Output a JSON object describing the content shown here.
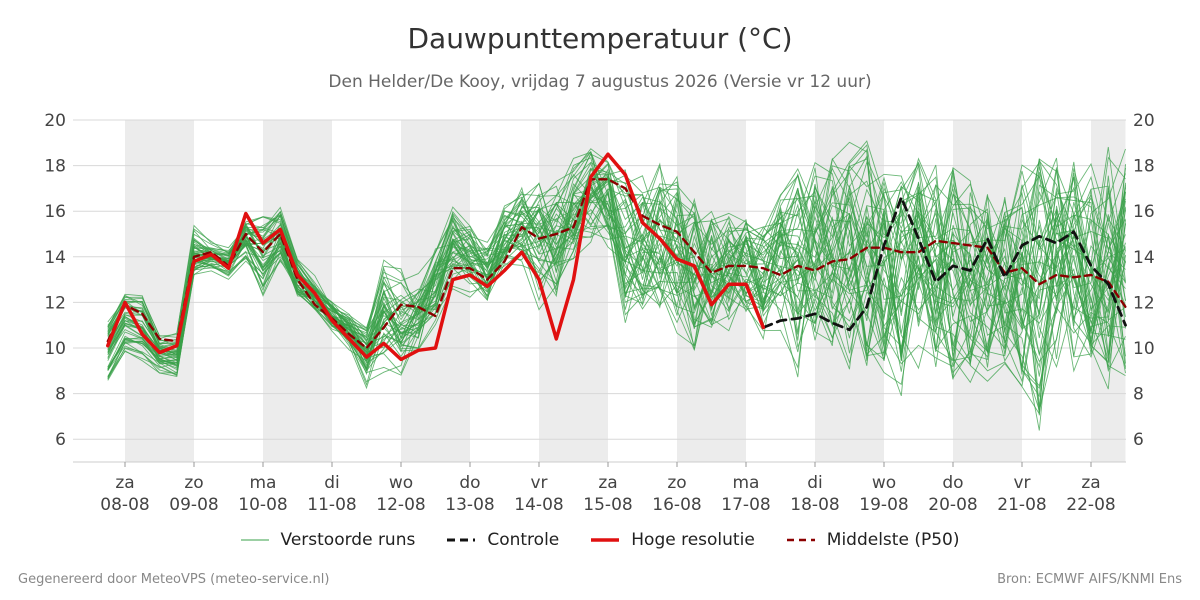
{
  "chart": {
    "title": "Dauwpunttemperatuur (°C)",
    "subtitle": "Den Helder/De Kooy, vrijdag  7 augustus 2026 (Versie vr 12 uur)",
    "footer_left": "Gegenereerd door MeteoVPS (meteo-service.nl)",
    "footer_right": "Bron: ECMWF AIFS/KNMI Ens",
    "legend": [
      {
        "label": "Verstoorde runs",
        "color": "#3aa04a",
        "style": "thin"
      },
      {
        "label": "Controle",
        "color": "#111111",
        "style": "dashed"
      },
      {
        "label": "Hoge resolutie",
        "color": "#e01010",
        "style": "solid-thick"
      },
      {
        "label": "Middelste (P50)",
        "color": "#8b0000",
        "style": "dashed"
      }
    ]
  },
  "chart_data": {
    "type": "line",
    "title": "Dauwpunttemperatuur (°C)",
    "x_unit": "days since start",
    "xlim": [
      -0.25,
      14.5
    ],
    "ylim": [
      5,
      20
    ],
    "y_ticks": [
      6,
      8,
      10,
      12,
      14,
      16,
      18,
      20
    ],
    "x_ticks": [
      {
        "x": 0,
        "day": "za",
        "date": "08-08"
      },
      {
        "x": 1,
        "day": "zo",
        "date": "09-08"
      },
      {
        "x": 2,
        "day": "ma",
        "date": "10-08"
      },
      {
        "x": 3,
        "day": "di",
        "date": "11-08"
      },
      {
        "x": 4,
        "day": "wo",
        "date": "12-08"
      },
      {
        "x": 5,
        "day": "do",
        "date": "13-08"
      },
      {
        "x": 6,
        "day": "vr",
        "date": "14-08"
      },
      {
        "x": 7,
        "day": "za",
        "date": "15-08"
      },
      {
        "x": 8,
        "day": "zo",
        "date": "16-08"
      },
      {
        "x": 9,
        "day": "ma",
        "date": "17-08"
      },
      {
        "x": 10,
        "day": "di",
        "date": "18-08"
      },
      {
        "x": 11,
        "day": "wo",
        "date": "19-08"
      },
      {
        "x": 12,
        "day": "do",
        "date": "20-08"
      },
      {
        "x": 13,
        "day": "vr",
        "date": "21-08"
      },
      {
        "x": 14,
        "day": "za",
        "date": "22-08"
      }
    ],
    "shaded_days": [
      [
        0,
        1
      ],
      [
        2,
        3
      ],
      [
        4,
        5
      ],
      [
        6,
        7
      ],
      [
        8,
        9
      ],
      [
        10,
        11
      ],
      [
        12,
        13
      ],
      [
        14,
        14.5
      ]
    ],
    "grid": true,
    "legend_position": "bottom",
    "series": [
      {
        "name": "Hoge resolutie",
        "color": "#e01010",
        "x": [
          -0.25,
          0,
          0.25,
          0.5,
          0.75,
          1,
          1.25,
          1.5,
          1.75,
          2,
          2.25,
          2.5,
          2.75,
          3,
          3.25,
          3.5,
          3.75,
          4,
          4.25,
          4.5,
          4.75,
          5,
          5.25,
          5.5,
          5.75,
          6,
          6.25,
          6.5,
          6.75,
          7,
          7.25,
          7.5,
          7.75,
          8,
          8.25,
          8.5,
          8.75,
          9,
          9.25
        ],
        "y": [
          10.1,
          12.0,
          10.6,
          9.8,
          10.1,
          13.8,
          14.1,
          13.5,
          15.9,
          14.6,
          15.2,
          13.2,
          12.4,
          11.2,
          10.4,
          9.6,
          10.2,
          9.5,
          9.9,
          10.0,
          13.0,
          13.2,
          12.7,
          13.4,
          14.2,
          13.0,
          10.4,
          13.0,
          17.5,
          18.5,
          17.6,
          15.5,
          14.8,
          13.9,
          13.6,
          11.9,
          12.8,
          12.8,
          10.9
        ]
      },
      {
        "name": "Controle",
        "color": "#111111",
        "x": [
          9.25,
          9.5,
          9.75,
          10,
          10.25,
          10.5,
          10.75,
          11,
          11.25,
          11.5,
          11.75,
          12,
          12.25,
          12.5,
          12.75,
          13,
          13.25,
          13.5,
          13.75,
          14,
          14.25,
          14.5
        ],
        "y": [
          10.9,
          11.2,
          11.3,
          11.5,
          11.1,
          10.8,
          11.8,
          14.5,
          16.6,
          14.8,
          12.9,
          13.6,
          13.4,
          14.8,
          13.1,
          14.5,
          14.9,
          14.6,
          15.1,
          13.6,
          12.8,
          11.0
        ]
      },
      {
        "name": "Middelste (P50)",
        "color": "#8b0000",
        "x": [
          -0.25,
          0,
          0.25,
          0.5,
          0.75,
          1,
          1.25,
          1.5,
          1.75,
          2,
          2.25,
          2.5,
          2.75,
          3,
          3.25,
          3.5,
          3.75,
          4,
          4.25,
          4.5,
          4.75,
          5,
          5.25,
          5.5,
          5.75,
          6,
          6.25,
          6.5,
          6.75,
          7,
          7.25,
          7.5,
          7.75,
          8,
          8.25,
          8.5,
          8.75,
          9,
          9.25,
          9.5,
          9.75,
          10,
          10.25,
          10.5,
          10.75,
          11,
          11.25,
          11.5,
          11.75,
          12,
          12.25,
          12.5,
          12.75,
          13,
          13.25,
          13.5,
          13.75,
          14,
          14.25,
          14.5
        ],
        "y": [
          10.3,
          11.9,
          11.5,
          10.4,
          10.3,
          14.0,
          14.2,
          13.6,
          15.0,
          14.2,
          15.0,
          13.0,
          11.9,
          11.3,
          10.6,
          10.0,
          10.9,
          11.9,
          11.8,
          11.4,
          13.5,
          13.5,
          13.0,
          13.8,
          15.3,
          14.8,
          15.0,
          15.3,
          17.4,
          17.4,
          17.0,
          15.8,
          15.4,
          15.1,
          14.2,
          13.3,
          13.6,
          13.6,
          13.5,
          13.2,
          13.6,
          13.4,
          13.8,
          13.9,
          14.4,
          14.4,
          14.2,
          14.2,
          14.7,
          14.6,
          14.5,
          14.4,
          13.3,
          13.5,
          12.8,
          13.2,
          13.1,
          13.2,
          12.9,
          11.8
        ]
      }
    ],
    "ensemble": {
      "name": "Verstoorde runs",
      "color": "#3aa04a",
      "members": 50,
      "x_start": -0.25,
      "x_end": 14.5,
      "x_step": 0.25,
      "envelope_y": [
        [
          8.4,
          11.3
        ],
        [
          9.5,
          12.8
        ],
        [
          9.0,
          12.9
        ],
        [
          8.5,
          11.0
        ],
        [
          8.0,
          11.3
        ],
        [
          12.3,
          16.0
        ],
        [
          12.8,
          15.2
        ],
        [
          12.5,
          15.0
        ],
        [
          13.0,
          16.6
        ],
        [
          10.4,
          17.9
        ],
        [
          12.6,
          17.5
        ],
        [
          11.4,
          14.6
        ],
        [
          11.0,
          13.6
        ],
        [
          10.2,
          12.8
        ],
        [
          9.4,
          12.2
        ],
        [
          7.5,
          12.0
        ],
        [
          7.4,
          15.4
        ],
        [
          7.5,
          14.5
        ],
        [
          8.6,
          14.0
        ],
        [
          9.8,
          15.5
        ],
        [
          11.6,
          17.2
        ],
        [
          11.7,
          16.4
        ],
        [
          11.2,
          15.6
        ],
        [
          12.4,
          17.2
        ],
        [
          12.6,
          18.3
        ],
        [
          10.8,
          18.7
        ],
        [
          10.5,
          18.5
        ],
        [
          12.4,
          19.2
        ],
        [
          14.0,
          19.3
        ],
        [
          13.4,
          19.3
        ],
        [
          9.8,
          18.9
        ],
        [
          10.3,
          18.6
        ],
        [
          10.4,
          19.1
        ],
        [
          9.6,
          19.0
        ],
        [
          8.3,
          18.5
        ],
        [
          9.8,
          17.0
        ],
        [
          10.0,
          16.8
        ],
        [
          10.7,
          16.5
        ],
        [
          9.8,
          16.3
        ],
        [
          9.8,
          17.4
        ],
        [
          7.8,
          18.6
        ],
        [
          8.9,
          18.8
        ],
        [
          9.4,
          19.5
        ],
        [
          8.5,
          19.6
        ],
        [
          8.1,
          19.4
        ],
        [
          8.5,
          18.2
        ],
        [
          7.4,
          18.0
        ],
        [
          8.6,
          18.8
        ],
        [
          8.2,
          18.5
        ],
        [
          7.6,
          19.0
        ],
        [
          8.2,
          18.6
        ],
        [
          8.3,
          18.0
        ],
        [
          8.8,
          17.5
        ],
        [
          7.4,
          19.0
        ],
        [
          5.5,
          19.6
        ],
        [
          7.8,
          19.0
        ],
        [
          7.9,
          19.2
        ],
        [
          8.5,
          18.4
        ],
        [
          7.9,
          19.7
        ],
        [
          7.8,
          19.7
        ]
      ]
    }
  }
}
